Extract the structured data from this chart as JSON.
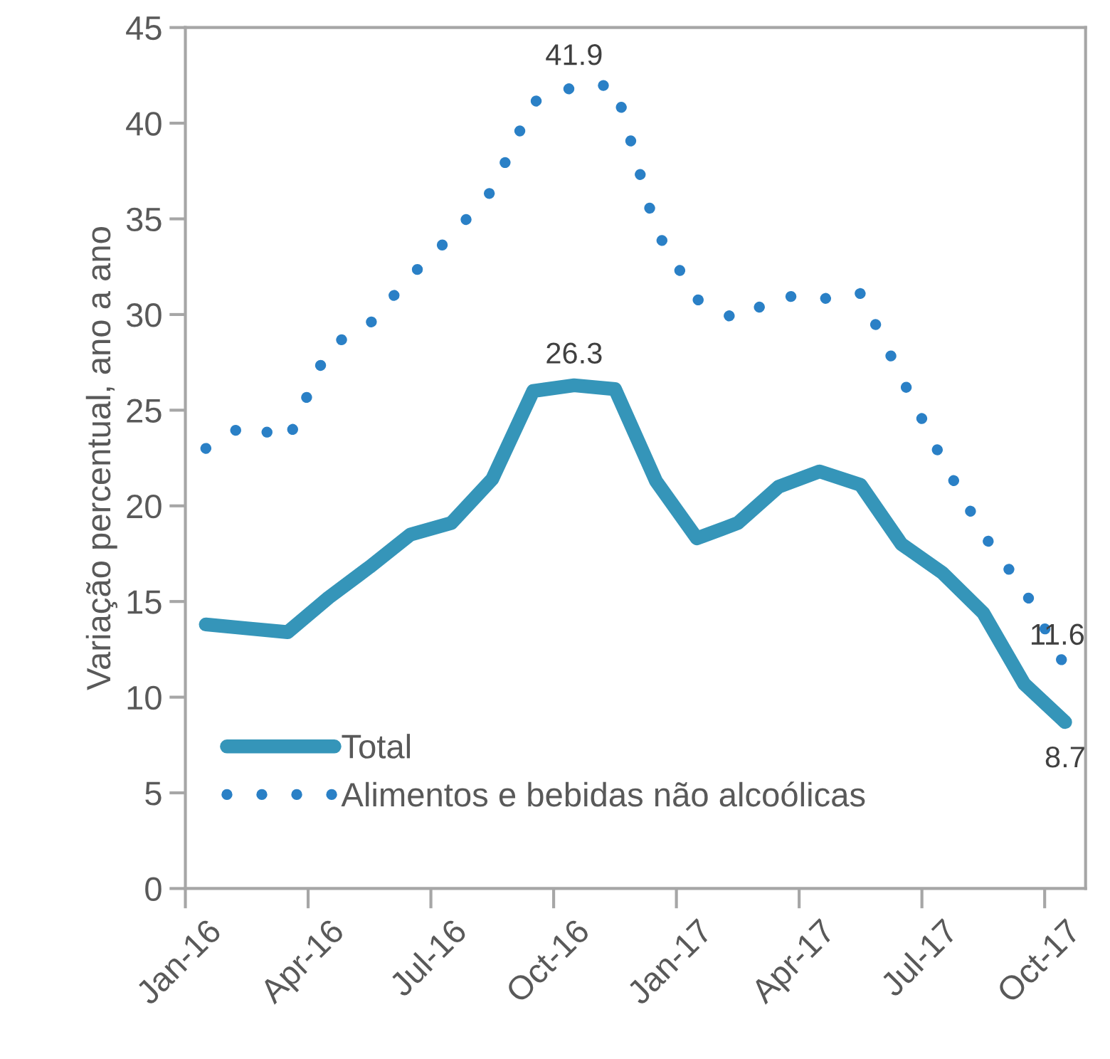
{
  "chart_data": {
    "type": "line",
    "ylabel": "Variação percentual, ano a ano",
    "categories": [
      "Jan-16",
      null,
      null,
      "Apr-16",
      null,
      null,
      "Jul-16",
      null,
      null,
      "Oct-16",
      null,
      null,
      "Jan-17",
      null,
      null,
      "Apr-17",
      null,
      null,
      "Jul-17",
      null,
      null,
      "Oct-17"
    ],
    "series": [
      {
        "name": "Total",
        "color": "#3595b9",
        "line_style": "solid",
        "values": [
          13.8,
          13.6,
          13.4,
          15.2,
          16.8,
          18.5,
          19.1,
          21.4,
          26.0,
          26.3,
          26.1,
          21.3,
          18.3,
          19.1,
          21.0,
          21.8,
          21.1,
          18.0,
          16.5,
          14.4,
          10.7,
          8.7
        ],
        "value_labels": [
          null,
          null,
          null,
          null,
          null,
          null,
          null,
          null,
          null,
          "26.3",
          null,
          null,
          null,
          null,
          null,
          null,
          null,
          null,
          null,
          null,
          null,
          "8.7"
        ]
      },
      {
        "name": "Alimentos e bebidas não alcoólicas",
        "color": "#2a80c6",
        "line_style": "dotted",
        "values": [
          23.0,
          24.3,
          23.4,
          28.3,
          29.5,
          32.0,
          34.1,
          36.5,
          41.1,
          41.9,
          42.0,
          34.4,
          30.8,
          29.7,
          31.0,
          30.8,
          31.1,
          26.7,
          22.4,
          18.5,
          15.6,
          11.6
        ],
        "value_labels": [
          null,
          null,
          null,
          null,
          null,
          null,
          null,
          null,
          null,
          "41.9",
          null,
          null,
          null,
          null,
          null,
          null,
          null,
          null,
          null,
          null,
          null,
          "11.6"
        ]
      }
    ],
    "ylim": [
      0,
      45
    ],
    "yticks": [
      0,
      5,
      10,
      15,
      20,
      25,
      30,
      35,
      40,
      45
    ],
    "grid": false,
    "legend": "bottom left"
  }
}
